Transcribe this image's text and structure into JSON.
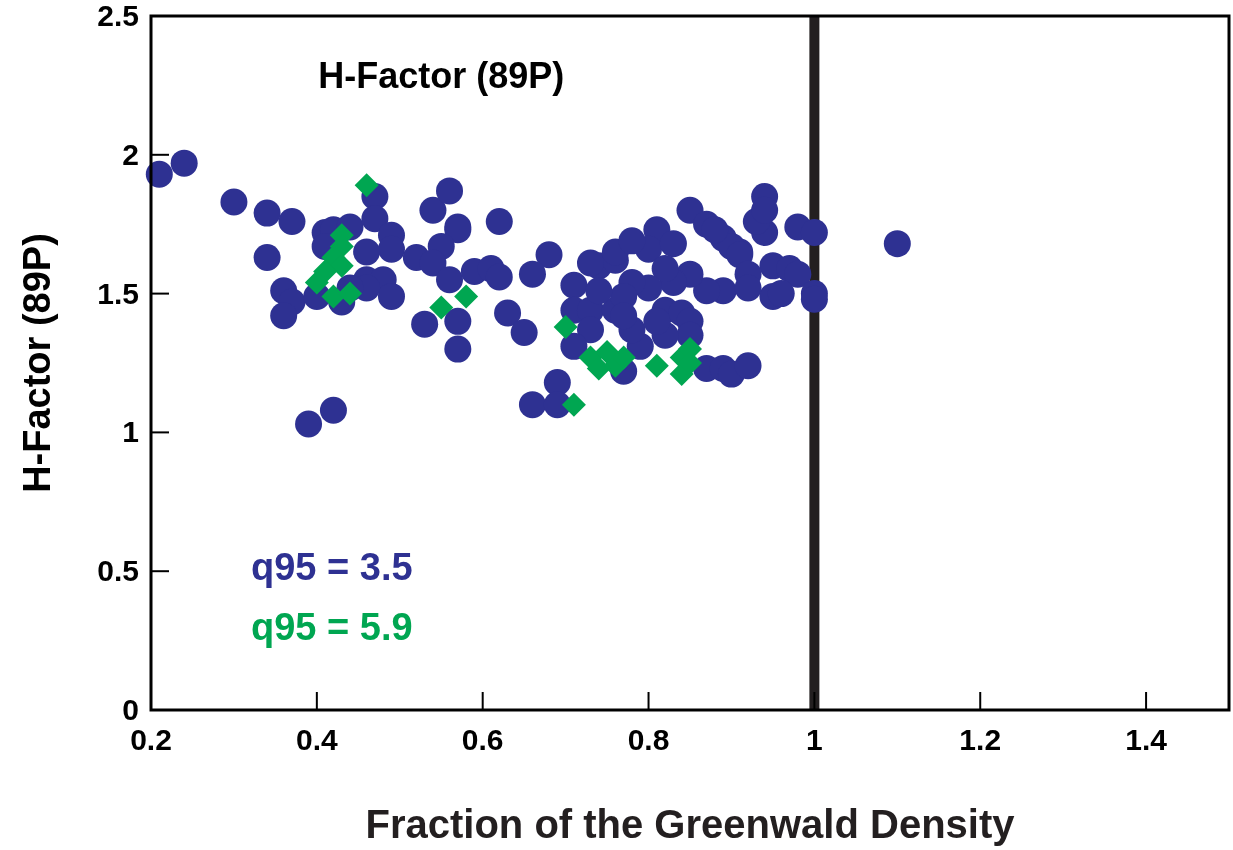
{
  "chart_data": {
    "type": "scatter",
    "title": "H-Factor (89P)",
    "xlabel": "Fraction of the Greenwald Density",
    "ylabel": "H-Factor (89P)",
    "xlim": [
      0.2,
      1.5
    ],
    "xticks": [
      0.2,
      0.4,
      0.6,
      0.8,
      1,
      1.2,
      1.4
    ],
    "ylim": [
      0,
      2.5
    ],
    "yticks": [
      0,
      0.5,
      1,
      1.5,
      2,
      2.5
    ],
    "legend": "bottom left",
    "ref_lines": [
      {
        "axis": "x",
        "value": 1,
        "color": "#231f20"
      }
    ],
    "series": [
      {
        "name": "q95 = 3.5",
        "color": "#2e3192",
        "marker": "circle",
        "x": [
          0.21,
          0.24,
          0.3,
          0.34,
          0.34,
          0.37,
          0.36,
          0.37,
          0.36,
          0.39,
          0.42,
          0.41,
          0.42,
          0.44,
          0.47,
          0.47,
          0.49,
          0.49,
          0.46,
          0.41,
          0.46,
          0.48,
          0.49,
          0.46,
          0.4,
          0.43,
          0.44,
          0.52,
          0.54,
          0.56,
          0.57,
          0.57,
          0.55,
          0.54,
          0.56,
          0.59,
          0.53,
          0.57,
          0.57,
          0.62,
          0.61,
          0.62,
          0.68,
          0.63,
          0.65,
          0.66,
          0.71,
          0.74,
          0.76,
          0.71,
          0.73,
          0.76,
          0.73,
          0.71,
          0.79,
          0.78,
          0.81,
          0.8,
          0.83,
          0.85,
          0.87,
          0.89,
          0.91,
          0.94,
          0.94,
          0.93,
          0.94,
          0.95,
          0.95,
          0.89,
          0.87,
          0.85,
          0.83,
          0.82,
          0.8,
          0.78,
          0.77,
          0.82,
          0.84,
          0.85,
          0.85,
          0.82,
          0.77,
          0.69,
          0.66,
          0.69,
          0.87,
          0.89,
          0.9,
          0.92,
          0.73,
          0.76,
          0.78,
          0.74,
          0.77,
          0.81,
          0.98,
          1.0,
          0.97,
          0.98,
          0.96,
          1.0,
          1.0,
          0.9,
          0.91,
          0.92,
          0.92,
          0.88,
          1.1
        ],
        "values": [
          1.93,
          1.97,
          1.83,
          1.79,
          1.63,
          1.76,
          1.51,
          1.47,
          1.42,
          1.03,
          1.08,
          1.72,
          1.73,
          1.74,
          1.85,
          1.77,
          1.71,
          1.66,
          1.65,
          1.67,
          1.55,
          1.55,
          1.49,
          1.52,
          1.49,
          1.47,
          1.52,
          1.63,
          1.8,
          1.87,
          1.74,
          1.73,
          1.67,
          1.61,
          1.55,
          1.58,
          1.39,
          1.4,
          1.3,
          1.76,
          1.59,
          1.56,
          1.64,
          1.43,
          1.36,
          1.57,
          1.53,
          1.6,
          1.62,
          1.44,
          1.44,
          1.44,
          1.37,
          1.31,
          1.31,
          1.37,
          1.73,
          1.66,
          1.68,
          1.8,
          1.75,
          1.7,
          1.65,
          1.85,
          1.72,
          1.76,
          1.8,
          1.6,
          1.49,
          1.51,
          1.51,
          1.57,
          1.54,
          1.59,
          1.52,
          1.54,
          1.49,
          1.44,
          1.43,
          1.4,
          1.35,
          1.35,
          1.22,
          1.18,
          1.1,
          1.1,
          1.23,
          1.23,
          1.21,
          1.24,
          1.61,
          1.65,
          1.69,
          1.51,
          1.42,
          1.4,
          1.74,
          1.72,
          1.59,
          1.57,
          1.5,
          1.5,
          1.48,
          1.67,
          1.64,
          1.57,
          1.52,
          1.73,
          1.68
        ]
      },
      {
        "name": "q95 = 5.9",
        "color": "#00a651",
        "marker": "diamond",
        "x": [
          0.46,
          0.43,
          0.43,
          0.42,
          0.43,
          0.41,
          0.4,
          0.42,
          0.44,
          0.55,
          0.58,
          0.7,
          0.71,
          0.73,
          0.75,
          0.76,
          0.77,
          0.74,
          0.81,
          0.84,
          0.85,
          0.84,
          0.85
        ],
        "values": [
          1.89,
          1.71,
          1.67,
          1.63,
          1.6,
          1.58,
          1.54,
          1.49,
          1.5,
          1.45,
          1.49,
          1.38,
          1.1,
          1.27,
          1.29,
          1.24,
          1.27,
          1.23,
          1.24,
          1.27,
          1.3,
          1.21,
          1.25
        ]
      }
    ]
  }
}
